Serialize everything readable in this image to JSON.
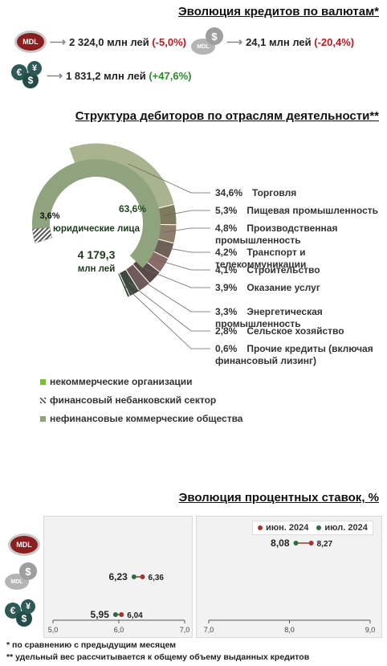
{
  "credits": {
    "title": "Эволюция кредитов по валютам*",
    "mdl_label": "MDL",
    "mdl_value": "2 324,0 млн лей",
    "mdl_change": "(-5,0%)",
    "usd_value": "24,1 млн лей",
    "usd_change": "(-20,4%)",
    "eur_value": "1 831,2 млн лей",
    "eur_change": "(+47,6%)"
  },
  "structure": {
    "title": "Структура дебиторов по отраслям деятельности**",
    "center_label": "юридические лица",
    "center_value": "4 179,3",
    "center_unit": "млн лей",
    "legend": [
      {
        "label": "некоммерческие организации",
        "color": "#7dbb42"
      },
      {
        "label": "финансовый небанковский сектор",
        "color": "#555555"
      },
      {
        "label": "нефинансовые коммерческие общества",
        "color": "#8fa37e"
      }
    ]
  },
  "rates": {
    "title": "Эволюция процентных ставок, %",
    "mdl_label": "MDL",
    "legend_jun": "июн. 2024",
    "legend_jul": "июл. 2024",
    "color_jun": "#a83232",
    "color_jul": "#2e6b3e"
  },
  "chart_data": [
    {
      "type": "pie",
      "title": "Структура дебиторов по отраслям деятельности**",
      "inner_ring": [
        {
          "label": "нефинансовые коммерческие общества",
          "value": 63.6,
          "display": "63,6%"
        },
        {
          "label": "финансовый небанковский сектор",
          "value": 3.6,
          "display": "3,6%"
        }
      ],
      "outer_ring": [
        {
          "pct": "34,6%",
          "label": "Торговля",
          "value": 34.6,
          "color": "#a9b38e"
        },
        {
          "pct": "5,3%",
          "label": "Пищевая промышленность",
          "value": 5.3,
          "color": "#7d7a5e"
        },
        {
          "pct": "4,8%",
          "label": "Производственная промышленность",
          "value": 4.8,
          "color": "#8e7f6a"
        },
        {
          "pct": "4,2%",
          "label": "Транспорт и телекоммуникации",
          "value": 4.2,
          "color": "#6f5f55"
        },
        {
          "pct": "4,1%",
          "label": "Строительство",
          "value": 4.1,
          "color": "#8b6b68"
        },
        {
          "pct": "3,9%",
          "label": "Оказание услуг",
          "value": 3.9,
          "color": "#5c4a4a"
        },
        {
          "pct": "3,3%",
          "label": "Энергетическая промышленность",
          "value": 3.3,
          "color": "#6f5a5a"
        },
        {
          "pct": "2,8%",
          "label": "Сельское хозяйство",
          "value": 2.8,
          "color": "#3f4a3f"
        },
        {
          "pct": "0,6%",
          "label": "Прочие кредиты (включая финансовый лизинг)",
          "value": 0.6,
          "color": "#1f3a1f"
        }
      ]
    },
    {
      "type": "scatter",
      "title": "Эволюция процентных ставок, %",
      "panels": [
        {
          "xlim": [
            5.0,
            7.0
          ],
          "ticks": [
            "5,0",
            "6,0",
            "7,0"
          ],
          "rows": [
            {
              "currency": "USD",
              "jun": 6.36,
              "jul": 6.23,
              "jun_label": "6,36",
              "jul_label": "6,23"
            },
            {
              "currency": "EUR",
              "jun": 6.04,
              "jul": 5.95,
              "jun_label": "6,04",
              "jul_label": "5,95"
            }
          ]
        },
        {
          "xlim": [
            7.0,
            9.0
          ],
          "ticks": [
            "7,0",
            "8,0",
            "9,0"
          ],
          "rows": [
            {
              "currency": "MDL",
              "jun": 8.27,
              "jul": 8.08,
              "jun_label": "8,27",
              "jul_label": "8,08"
            }
          ]
        }
      ]
    }
  ],
  "footnotes": {
    "note1": "* по сравнению с предыдущим месяцем",
    "note2": "** удельный вес рассчитывается к общему объему выданных кредитов"
  }
}
